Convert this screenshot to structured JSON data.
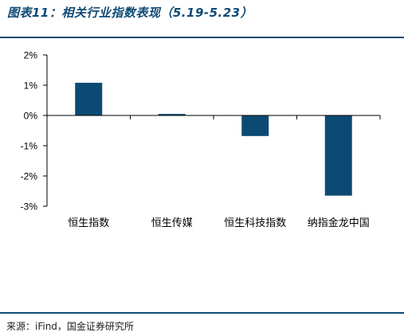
{
  "title": "图表11：相关行业指数表现（5.19-5.23）",
  "source": "来源：iFind，国金证券研究所",
  "colors": {
    "bar": "#0d4a73",
    "accent": "#0e4a75",
    "axis": "#000000"
  },
  "chart_data": {
    "type": "bar",
    "categories": [
      "恒生指数",
      "恒生传媒",
      "恒生科技指数",
      "纳指金龙中国"
    ],
    "values": [
      1.08,
      0.05,
      -0.68,
      -2.65
    ],
    "ylim": [
      -3,
      2
    ],
    "yticks": [
      2,
      1,
      0,
      -1,
      -2,
      -3
    ],
    "ytick_labels": [
      "2%",
      "1%",
      "0%",
      "-1%",
      "-2%",
      "-3%"
    ],
    "title": "",
    "xlabel": "",
    "ylabel": "",
    "grid": false,
    "legend": "none"
  }
}
